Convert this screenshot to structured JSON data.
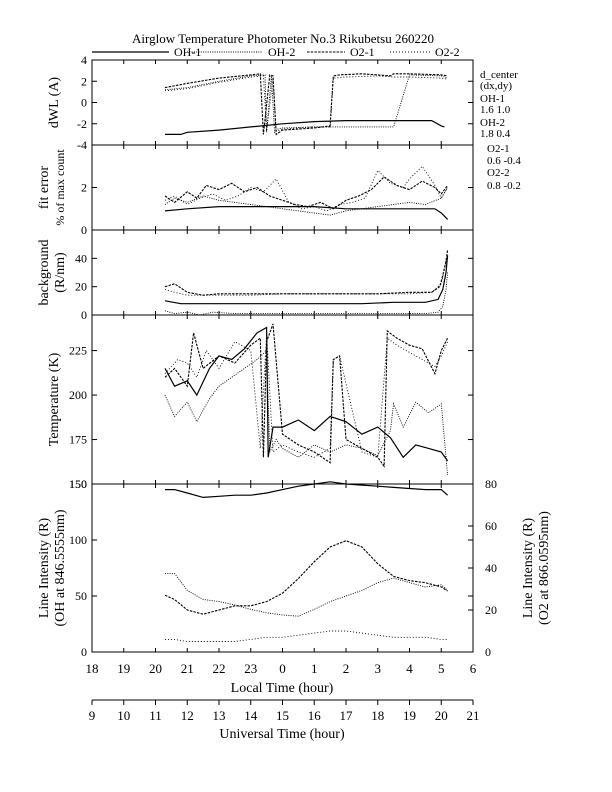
{
  "title": "Airglow Temperature Photometer No.3  Rikubetsu    260220",
  "legend": [
    {
      "name": "OH-1",
      "dash": "solid"
    },
    {
      "name": "OH-2",
      "dash": "dotted-fine"
    },
    {
      "name": "O2-1",
      "dash": "dashed"
    },
    {
      "name": "O2-2",
      "dash": "dotted"
    }
  ],
  "side_notes": {
    "header1": "d_center",
    "header2": "(dx,dy)",
    "oh1_label": "OH-1",
    "oh1_value": "1.6   1.0",
    "oh2_label": "OH-2",
    "oh2_value": "1.8   0.4",
    "o21_label": "O2-1",
    "o21_value": "0.6   -0.4",
    "o22_label": "O2-2",
    "o22_value": "0.8   -0.2"
  },
  "x_axes": {
    "local_label": "Local Time (hour)",
    "local_ticks": [
      "18",
      "19",
      "20",
      "21",
      "22",
      "23",
      "0",
      "1",
      "2",
      "3",
      "4",
      "5",
      "6"
    ],
    "ut_label": "Universal Time (hour)",
    "ut_ticks": [
      "9",
      "10",
      "11",
      "12",
      "13",
      "14",
      "15",
      "16",
      "17",
      "18",
      "19",
      "20",
      "21"
    ]
  },
  "chart_data": [
    {
      "type": "line",
      "panel": "dwl",
      "ylabel": "dWL (A)",
      "ylim": [
        -4,
        4
      ],
      "yticks": [
        "-4",
        "-2",
        "0",
        "2",
        "4"
      ],
      "x_range": [
        18,
        30
      ],
      "series": [
        {
          "name": "OH-1",
          "x": [
            20.3,
            20.8,
            21.0,
            22.0,
            23.0,
            24.0,
            25.0,
            26.0,
            27.0,
            28.0,
            28.7,
            29.0,
            29.1
          ],
          "values": [
            -3.0,
            -3.0,
            -2.8,
            -2.6,
            -2.3,
            -2.0,
            -1.8,
            -1.7,
            -1.7,
            -1.7,
            -1.7,
            -2.2,
            -2.3
          ]
        },
        {
          "name": "OH-2",
          "x": [
            20.3,
            21.0,
            22.0,
            23.0,
            23.45,
            23.5,
            23.65,
            23.75,
            23.85,
            24.0,
            25.0,
            26.0,
            26.5,
            27.0,
            27.5,
            28.0,
            29.0,
            29.2
          ],
          "values": [
            1.2,
            1.4,
            2.0,
            2.5,
            2.6,
            -2.8,
            2.5,
            -2.8,
            -2.5,
            -2.4,
            -2.3,
            -2.3,
            -2.3,
            -2.3,
            -2.3,
            2.6,
            2.5,
            2.3
          ]
        },
        {
          "name": "O2-1",
          "x": [
            20.3,
            21.0,
            22.0,
            23.0,
            23.3,
            23.4,
            23.6,
            23.7,
            23.8,
            24.0,
            25.0,
            25.5,
            25.6,
            25.8,
            26.5,
            27.0,
            27.4,
            27.5,
            28.0,
            29.0,
            29.2
          ],
          "values": [
            1.4,
            1.8,
            2.3,
            2.6,
            2.7,
            -3.0,
            2.6,
            2.5,
            -3.0,
            -2.6,
            -2.4,
            -2.2,
            2.5,
            2.6,
            2.7,
            2.6,
            2.5,
            2.7,
            2.7,
            2.6,
            2.5
          ]
        },
        {
          "name": "O2-2",
          "x": [
            20.3,
            21.0,
            22.0,
            23.0,
            23.4,
            23.5,
            23.7,
            23.8,
            24.0,
            25.0,
            25.5,
            25.6,
            26.0,
            27.0,
            27.5,
            28.0,
            29.0,
            29.2
          ],
          "values": [
            1.1,
            1.3,
            1.9,
            2.4,
            2.5,
            -2.7,
            2.3,
            -2.7,
            -2.5,
            -2.3,
            -2.3,
            2.3,
            2.4,
            2.5,
            2.4,
            2.4,
            2.3,
            2.2
          ]
        }
      ]
    },
    {
      "type": "line",
      "panel": "fit_error",
      "ylabel": "fit error",
      "ylabel2": "% of max count",
      "ylim": [
        0,
        4
      ],
      "yticks": [
        "0",
        "2",
        "4"
      ],
      "x_range": [
        18,
        30
      ],
      "series": [
        {
          "name": "OH-1",
          "x": [
            20.3,
            21.0,
            22.0,
            23.0,
            24.0,
            25.0,
            26.0,
            27.0,
            28.0,
            28.8,
            29.0,
            29.2
          ],
          "values": [
            0.9,
            1.0,
            1.1,
            1.1,
            1.1,
            1.1,
            1.0,
            1.0,
            1.0,
            1.0,
            0.8,
            0.5
          ]
        },
        {
          "name": "OH-2",
          "x": [
            20.3,
            20.6,
            21.0,
            21.5,
            22.0,
            22.5,
            23.0,
            23.5,
            24.0,
            24.5,
            25.0,
            25.5,
            26.0,
            26.5,
            27.0,
            27.5,
            28.0,
            28.5,
            29.0,
            29.2
          ],
          "values": [
            1.2,
            1.5,
            1.3,
            1.6,
            1.4,
            1.3,
            1.2,
            1.1,
            1.0,
            0.9,
            0.8,
            0.7,
            0.9,
            1.0,
            1.1,
            1.2,
            1.3,
            1.2,
            1.5,
            2.0
          ]
        },
        {
          "name": "O2-1",
          "x": [
            20.3,
            20.6,
            21.0,
            21.3,
            21.6,
            22.0,
            22.4,
            22.8,
            23.2,
            23.6,
            24.0,
            24.4,
            24.8,
            25.2,
            25.6,
            26.0,
            26.4,
            26.8,
            27.2,
            27.6,
            28.0,
            28.4,
            28.8,
            29.0,
            29.2
          ],
          "values": [
            1.6,
            1.3,
            1.8,
            1.5,
            2.1,
            1.9,
            2.2,
            1.8,
            2.0,
            1.6,
            1.4,
            1.2,
            1.1,
            1.3,
            1.0,
            1.4,
            1.6,
            1.9,
            2.5,
            2.1,
            1.9,
            2.3,
            2.0,
            1.7,
            2.1
          ]
        },
        {
          "name": "O2-2",
          "x": [
            20.3,
            20.6,
            21.0,
            21.4,
            21.8,
            22.2,
            22.6,
            23.0,
            23.4,
            23.8,
            24.2,
            24.6,
            25.0,
            25.4,
            25.8,
            26.2,
            26.6,
            27.0,
            27.4,
            27.8,
            28.0,
            28.4,
            28.8,
            29.0,
            29.2
          ],
          "values": [
            1.4,
            1.6,
            1.2,
            1.5,
            1.7,
            1.4,
            1.6,
            2.0,
            1.8,
            2.4,
            1.3,
            1.0,
            1.1,
            0.9,
            1.2,
            1.3,
            1.5,
            2.8,
            2.2,
            2.0,
            2.4,
            3.0,
            2.1,
            1.5,
            2.0
          ]
        }
      ]
    },
    {
      "type": "line",
      "panel": "background",
      "ylabel": "background",
      "ylabel2": "(R/nm)",
      "ylim": [
        0,
        60
      ],
      "yticks": [
        "0",
        "20",
        "40",
        "60"
      ],
      "x_range": [
        18,
        30
      ],
      "series": [
        {
          "name": "OH-1",
          "x": [
            20.3,
            20.8,
            21.5,
            22.5,
            23.5,
            24.5,
            25.5,
            26.5,
            27.5,
            28.5,
            28.9,
            29.05,
            29.15,
            29.2
          ],
          "values": [
            10,
            8,
            8,
            8,
            8,
            8,
            8,
            8,
            9,
            9,
            11,
            18,
            30,
            42
          ]
        },
        {
          "name": "OH-2",
          "x": [
            20.3,
            20.6,
            21.0,
            21.4,
            21.8,
            22.5,
            23.5,
            24.5,
            25.5,
            26.5,
            27.5,
            28.5,
            28.9,
            29.05,
            29.15,
            29.2
          ],
          "values": [
            3,
            1,
            2,
            0,
            2,
            1,
            1,
            1,
            1,
            1,
            1,
            1,
            2,
            6,
            18,
            30
          ]
        },
        {
          "name": "O2-1",
          "x": [
            20.3,
            20.6,
            21.0,
            21.5,
            22.0,
            23.0,
            24.0,
            25.0,
            26.0,
            27.0,
            28.0,
            28.7,
            28.95,
            29.05,
            29.15,
            29.2
          ],
          "values": [
            20,
            22,
            16,
            14,
            15,
            15,
            15,
            15,
            15,
            15,
            16,
            16,
            20,
            28,
            38,
            46
          ]
        },
        {
          "name": "O2-2",
          "x": [
            20.3,
            20.6,
            21.0,
            21.5,
            22.0,
            23.0,
            24.0,
            25.0,
            26.0,
            27.0,
            28.0,
            28.7,
            29.0,
            29.1,
            29.2
          ],
          "values": [
            18,
            16,
            14,
            14,
            14,
            14,
            15,
            15,
            15,
            15,
            15,
            16,
            22,
            32,
            44
          ]
        }
      ]
    },
    {
      "type": "line",
      "panel": "temperature",
      "ylabel": "Temperature (K)",
      "ylim": [
        150,
        245
      ],
      "yticks": [
        "150",
        "175",
        "200",
        "225"
      ],
      "x_range": [
        18,
        30
      ],
      "series": [
        {
          "name": "OH-1",
          "x": [
            20.3,
            20.6,
            21.0,
            21.3,
            21.7,
            22.0,
            22.4,
            22.8,
            23.2,
            23.5,
            23.55,
            23.7,
            24.0,
            24.5,
            25.0,
            25.5,
            26.0,
            26.5,
            27.0,
            27.4,
            27.8,
            28.2,
            28.6,
            29.0,
            29.2
          ],
          "values": [
            215,
            205,
            208,
            200,
            215,
            222,
            220,
            226,
            235,
            238,
            165,
            182,
            182,
            186,
            180,
            188,
            185,
            178,
            182,
            176,
            165,
            172,
            170,
            168,
            163
          ]
        },
        {
          "name": "OH-2",
          "x": [
            20.3,
            20.6,
            21.0,
            21.3,
            21.7,
            22.0,
            22.4,
            22.8,
            23.2,
            23.5,
            23.6,
            23.8,
            24.0,
            24.5,
            25.0,
            25.5,
            26.0,
            26.5,
            27.0,
            27.4,
            27.5,
            27.8,
            28.2,
            28.6,
            29.0,
            29.2
          ],
          "values": [
            200,
            188,
            196,
            185,
            198,
            205,
            210,
            215,
            220,
            225,
            168,
            175,
            170,
            165,
            172,
            168,
            172,
            170,
            166,
            180,
            195,
            182,
            196,
            190,
            195,
            155
          ]
        },
        {
          "name": "O2-1",
          "x": [
            20.3,
            20.6,
            21.0,
            21.2,
            21.5,
            22.0,
            22.5,
            23.0,
            23.3,
            23.4,
            23.5,
            23.7,
            24.0,
            24.5,
            25.0,
            25.5,
            25.6,
            25.8,
            26.0,
            26.5,
            27.0,
            27.2,
            27.3,
            27.6,
            28.0,
            28.4,
            28.8,
            29.0,
            29.2
          ],
          "values": [
            210,
            215,
            205,
            235,
            215,
            222,
            218,
            228,
            232,
            165,
            230,
            240,
            178,
            172,
            168,
            162,
            220,
            222,
            175,
            170,
            165,
            160,
            236,
            232,
            228,
            226,
            212,
            225,
            232
          ]
        },
        {
          "name": "O2-2",
          "x": [
            20.3,
            20.7,
            21.0,
            21.3,
            21.6,
            22.0,
            22.5,
            23.0,
            23.3,
            23.5,
            23.7,
            24.0,
            24.5,
            25.0,
            25.5,
            25.6,
            25.8,
            26.5,
            27.0,
            27.3,
            27.6,
            28.0,
            28.4,
            28.8,
            29.0,
            29.2
          ],
          "values": [
            212,
            220,
            218,
            210,
            225,
            215,
            230,
            225,
            170,
            235,
            168,
            172,
            168,
            165,
            170,
            220,
            222,
            168,
            165,
            232,
            228,
            224,
            220,
            216,
            222,
            230
          ]
        }
      ]
    },
    {
      "type": "line",
      "panel": "intensity",
      "ylabel": "Line Intensity (R)",
      "ylabel2": "(OH at 846.5555nm)",
      "ylim": [
        0,
        150
      ],
      "yticks": [
        "0",
        "50",
        "100",
        "150"
      ],
      "ylabel_right": "Line Intensity (R)",
      "ylabel_right2": "(O2 at 866.0595nm)",
      "ylim_right": [
        0,
        80
      ],
      "yticks_right": [
        "0",
        "20",
        "40",
        "60",
        "80"
      ],
      "x_range": [
        18,
        30
      ],
      "series": [
        {
          "name": "OH-1",
          "axis": "left",
          "x": [
            20.3,
            20.6,
            21.0,
            21.5,
            22.0,
            22.5,
            23.0,
            23.5,
            24.0,
            24.5,
            25.0,
            25.5,
            26.0,
            26.5,
            27.0,
            27.5,
            28.0,
            28.5,
            29.0,
            29.2
          ],
          "values": [
            145,
            145,
            142,
            138,
            139,
            140,
            140,
            142,
            145,
            148,
            150,
            152,
            150,
            149,
            148,
            147,
            146,
            145,
            145,
            140
          ]
        },
        {
          "name": "OH-2",
          "axis": "left",
          "x": [
            20.3,
            20.6,
            21.0,
            21.5,
            22.0,
            22.5,
            23.0,
            23.5,
            24.0,
            24.5,
            25.0,
            25.5,
            26.0,
            26.5,
            27.0,
            27.5,
            28.0,
            28.5,
            29.0,
            29.2
          ],
          "values": [
            70,
            70,
            55,
            47,
            45,
            42,
            38,
            35,
            33,
            32,
            38,
            45,
            50,
            55,
            62,
            66,
            62,
            58,
            60,
            55
          ]
        },
        {
          "name": "O2-1",
          "axis": "right",
          "x": [
            20.3,
            20.6,
            21.0,
            21.5,
            22.0,
            22.5,
            23.0,
            23.5,
            24.0,
            24.5,
            25.0,
            25.5,
            26.0,
            26.5,
            27.0,
            27.5,
            28.0,
            28.5,
            29.0,
            29.2
          ],
          "values": [
            27,
            25,
            20,
            18,
            20,
            22,
            22,
            24,
            28,
            35,
            43,
            50,
            53,
            50,
            42,
            36,
            34,
            33,
            31,
            29
          ]
        },
        {
          "name": "O2-2",
          "axis": "right",
          "x": [
            20.3,
            20.6,
            21.0,
            21.5,
            22.0,
            22.5,
            23.0,
            23.5,
            24.0,
            24.5,
            25.0,
            25.5,
            26.0,
            26.5,
            27.0,
            27.5,
            28.0,
            28.5,
            29.0,
            29.2
          ],
          "values": [
            6,
            6,
            5,
            5,
            5,
            5,
            6,
            7,
            7,
            8,
            9,
            10,
            10,
            9,
            8,
            7,
            7,
            7,
            6,
            6
          ]
        }
      ]
    }
  ]
}
